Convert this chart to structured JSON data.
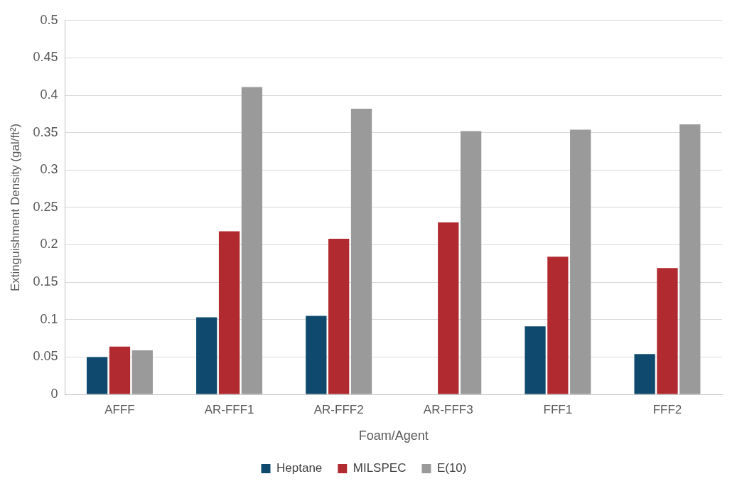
{
  "chart_data": {
    "type": "bar",
    "xlabel": "Foam/Agent",
    "ylabel": "Extinguishment Density (gal/ft²)",
    "categories": [
      "AFFF",
      "AR-FFF1",
      "AR-FFF2",
      "AR-FFF3",
      "FFF1",
      "FFF2"
    ],
    "series": [
      {
        "name": "Heptane",
        "color": "#0f4a6e",
        "values": [
          0.05,
          0.103,
          0.105,
          null,
          0.091,
          0.054
        ]
      },
      {
        "name": "MILSPEC",
        "color": "#b02a2f",
        "values": [
          0.064,
          0.218,
          0.208,
          0.23,
          0.184,
          0.169
        ]
      },
      {
        "name": "E(10)",
        "color": "#9a9a9a",
        "values": [
          0.059,
          0.411,
          0.382,
          0.352,
          0.354,
          0.361
        ]
      }
    ],
    "ylim": [
      0,
      0.5
    ],
    "yticks": [
      0,
      0.05,
      0.1,
      0.15,
      0.2,
      0.25,
      0.3,
      0.35,
      0.4,
      0.45,
      0.5
    ],
    "grid": "y",
    "legend": "bottom"
  }
}
